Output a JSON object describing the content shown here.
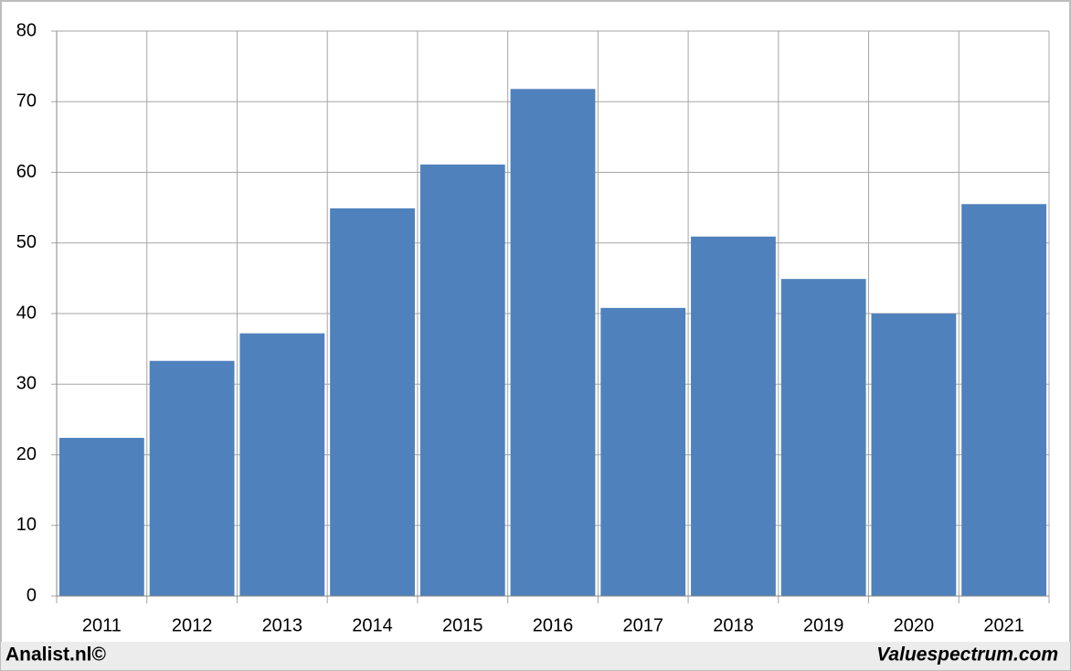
{
  "chart_data": {
    "type": "bar",
    "categories": [
      "2011",
      "2012",
      "2013",
      "2014",
      "2015",
      "2016",
      "2017",
      "2018",
      "2019",
      "2020",
      "2021"
    ],
    "values": [
      22.4,
      33.3,
      37.2,
      54.9,
      61.1,
      71.8,
      40.8,
      50.9,
      44.9,
      40.0,
      55.5
    ],
    "color": "#4f81bd",
    "ylim": [
      0,
      80
    ],
    "yticks": [
      0,
      10,
      20,
      30,
      40,
      50,
      60,
      70,
      80
    ],
    "grid": true
  },
  "footer": {
    "left": "Analist.nl©",
    "right": "Valuespectrum.com"
  }
}
